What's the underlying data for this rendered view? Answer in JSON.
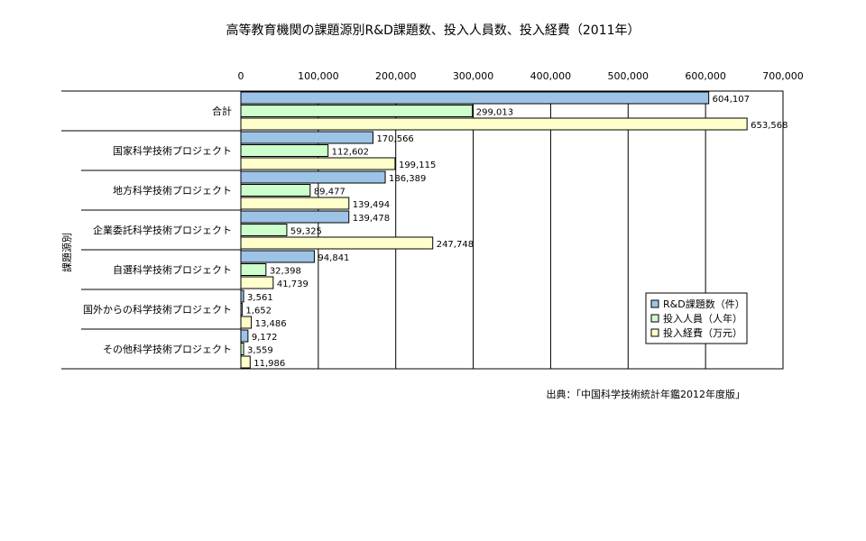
{
  "chart_data": {
    "type": "bar",
    "orientation": "horizontal",
    "title": "高等教育機関の課題源別R&D課題数、投入人員数、投入経費（2011年）",
    "ylabel": "課題源別",
    "xlabel": "",
    "xlim": [
      0,
      700000
    ],
    "xticks": [
      "0",
      "100,000",
      "200,000",
      "300,000",
      "400,000",
      "500,000",
      "600,000",
      "700,000"
    ],
    "xtick_values": [
      0,
      100000,
      200000,
      300000,
      400000,
      500000,
      600000,
      700000
    ],
    "grid": true,
    "legend_position": "right",
    "categories": [
      "合計",
      "国家科学技術プロジェクト",
      "地方科学技術プロジェクト",
      "企業委託科学技術プロジェクト",
      "自選科学技術プロジェクト",
      "国外からの科学技術プロジェクト",
      "その他科学技術プロジェクト"
    ],
    "series": [
      {
        "name": "R&D課題数（件）",
        "color": "#9DC3E6",
        "values": [
          604107,
          170566,
          186389,
          139478,
          94841,
          3561,
          9172
        ],
        "labels": [
          "604,107",
          "170,566",
          "186,389",
          "139,478",
          "94,841",
          "3,561",
          "9,172"
        ]
      },
      {
        "name": "投入人員（人年）",
        "color": "#CCFFCC",
        "values": [
          299013,
          112602,
          89477,
          59325,
          32398,
          1652,
          3559
        ],
        "labels": [
          "299,013",
          "112,602",
          "89,477",
          "59,325",
          "32,398",
          "1,652",
          "3,559"
        ]
      },
      {
        "name": "投入経費（万元）",
        "color": "#FFFFCC",
        "values": [
          653568,
          199115,
          139494,
          247748,
          41739,
          13486,
          11986
        ],
        "labels": [
          "653,568",
          "199,115",
          "139,494",
          "247,748",
          "41,739",
          "13,486",
          "11,986"
        ]
      }
    ],
    "source": "出典：「中国科学技術統計年鑑2012年度版」"
  }
}
